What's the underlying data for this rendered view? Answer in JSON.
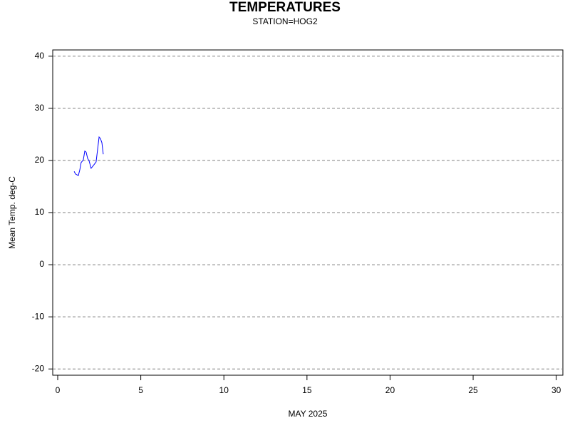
{
  "chart_data": {
    "type": "line",
    "title": "TEMPERATURES",
    "subtitle": "STATION=HOG2",
    "x_label": "MAY 2025",
    "y_label": "Mean Temp. deg-C",
    "x": [
      0.99,
      1.07,
      1.24,
      1.33,
      1.41,
      1.54,
      1.63,
      1.71,
      1.8,
      1.89,
      2.01,
      2.14,
      2.31,
      2.4,
      2.49,
      2.57,
      2.66,
      2.74
    ],
    "series": [
      {
        "color": "#0000ff",
        "values": [
          17.9,
          17.4,
          17.1,
          18.2,
          19.6,
          20.1,
          21.8,
          21.6,
          20.4,
          19.9,
          18.5,
          19.0,
          19.7,
          22.1,
          24.5,
          24.2,
          23.4,
          21.2
        ]
      }
    ],
    "xlim": [
      -0.3,
      30.4
    ],
    "xticks": [
      0,
      5,
      10,
      15,
      20,
      25,
      30
    ],
    "ylim": [
      -21.2,
      41.2
    ],
    "yticks": [
      -20,
      -10,
      0,
      10,
      20,
      30,
      40
    ],
    "grid": true
  }
}
